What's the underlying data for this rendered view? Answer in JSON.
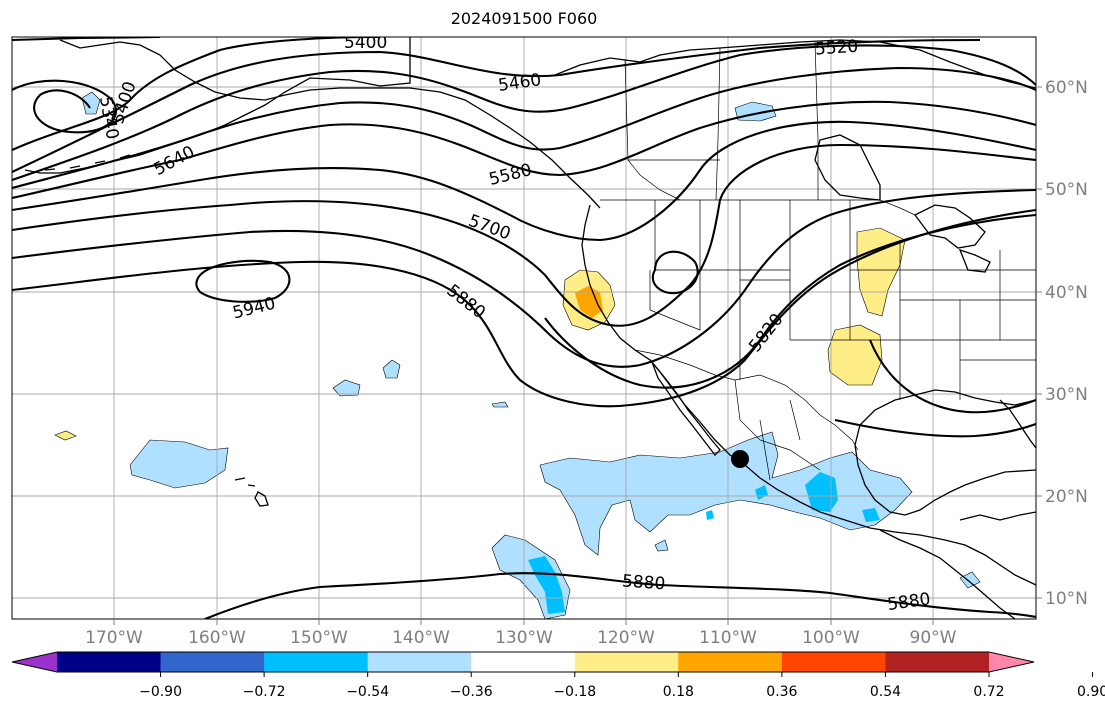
{
  "title": "2024091500 F060",
  "map": {
    "contour_labels": [
      "5400",
      "5520",
      "5460",
      "5340",
      "5400",
      "5640",
      "5580",
      "5700",
      "5940",
      "5880",
      "5820",
      "5880",
      "5880"
    ],
    "lon_labels": [
      "170°W",
      "160°W",
      "150°W",
      "140°W",
      "130°W",
      "120°W",
      "110°W",
      "100°W",
      "90°W"
    ],
    "lat_labels": [
      "60°N",
      "50°N",
      "40°N",
      "30°N",
      "20°N",
      "10°N"
    ],
    "marker": "black-dot"
  },
  "colorbar": {
    "colors": [
      "#9933cc",
      "#000088",
      "#3366cc",
      "#00bfff",
      "#b0e0ff",
      "#ffffff",
      "#ffee88",
      "#ffa500",
      "#ff4500",
      "#b22222",
      "#ff88aa"
    ],
    "ticks": [
      "−0.90",
      "−0.72",
      "−0.54",
      "−0.36",
      "−0.18",
      "0.18",
      "0.36",
      "0.54",
      "0.72",
      "0.90"
    ]
  }
}
